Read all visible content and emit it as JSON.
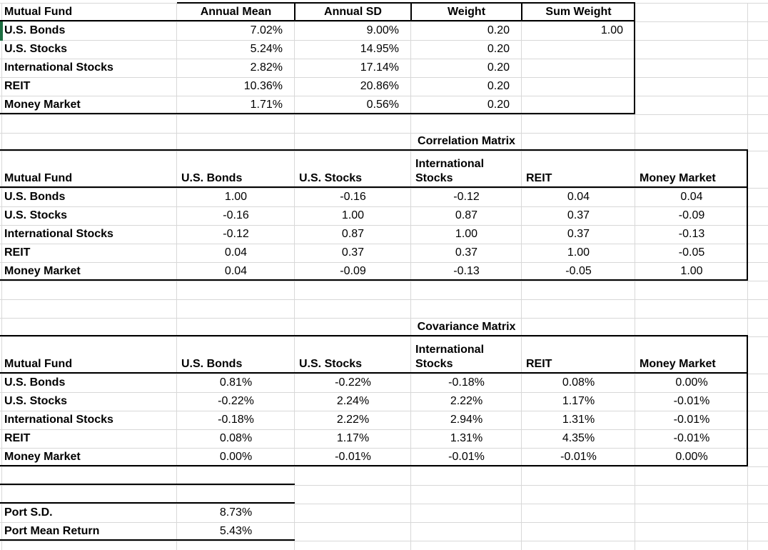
{
  "colors": {
    "background": "#ffffff",
    "gridline": "#d8d8d8",
    "border": "#000000",
    "selection_green": "#1e6f42"
  },
  "top_table": {
    "headers": [
      "Mutual Fund",
      "Annual Mean",
      "Annual SD",
      "Weight",
      "Sum Weight"
    ],
    "rows": [
      {
        "fund": "U.S. Bonds",
        "annual_mean": "7.02%",
        "annual_sd": "9.00%",
        "weight": "0.20",
        "sum_weight": "1.00"
      },
      {
        "fund": "U.S. Stocks",
        "annual_mean": "5.24%",
        "annual_sd": "14.95%",
        "weight": "0.20"
      },
      {
        "fund": "International Stocks",
        "annual_mean": "2.82%",
        "annual_sd": "17.14%",
        "weight": "0.20"
      },
      {
        "fund": "REIT",
        "annual_mean": "10.36%",
        "annual_sd": "20.86%",
        "weight": "0.20"
      },
      {
        "fund": "Money Market",
        "annual_mean": "1.71%",
        "annual_sd": "0.56%",
        "weight": "0.20"
      }
    ]
  },
  "correlation": {
    "title": "Correlation Matrix",
    "headers": [
      "Mutual Fund",
      "U.S. Bonds",
      "U.S. Stocks",
      "International Stocks",
      "REIT",
      "Money Market"
    ],
    "rows": [
      {
        "fund": "U.S. Bonds",
        "values": [
          "1.00",
          "-0.16",
          "-0.12",
          "0.04",
          "0.04"
        ]
      },
      {
        "fund": "U.S. Stocks",
        "values": [
          "-0.16",
          "1.00",
          "0.87",
          "0.37",
          "-0.09"
        ]
      },
      {
        "fund": "International Stocks",
        "values": [
          "-0.12",
          "0.87",
          "1.00",
          "0.37",
          "-0.13"
        ]
      },
      {
        "fund": "REIT",
        "values": [
          "0.04",
          "0.37",
          "0.37",
          "1.00",
          "-0.05"
        ]
      },
      {
        "fund": "Money Market",
        "values": [
          "0.04",
          "-0.09",
          "-0.13",
          "-0.05",
          "1.00"
        ]
      }
    ]
  },
  "covariance": {
    "title": "Covariance Matrix",
    "headers": [
      "Mutual Fund",
      "U.S. Bonds",
      "U.S. Stocks",
      "International Stocks",
      "REIT",
      "Money Market"
    ],
    "rows": [
      {
        "fund": "U.S. Bonds",
        "values": [
          "0.81%",
          "-0.22%",
          "-0.18%",
          "0.08%",
          "0.00%"
        ]
      },
      {
        "fund": "U.S. Stocks",
        "values": [
          "-0.22%",
          "2.24%",
          "2.22%",
          "1.17%",
          "-0.01%"
        ]
      },
      {
        "fund": "International Stocks",
        "values": [
          "-0.18%",
          "2.22%",
          "2.94%",
          "1.31%",
          "-0.01%"
        ]
      },
      {
        "fund": "REIT",
        "values": [
          "0.08%",
          "1.17%",
          "1.31%",
          "4.35%",
          "-0.01%"
        ]
      },
      {
        "fund": "Money Market",
        "values": [
          "0.00%",
          "-0.01%",
          "-0.01%",
          "-0.01%",
          "0.00%"
        ]
      }
    ]
  },
  "portfolio": {
    "rows": [
      {
        "label": "Port S.D.",
        "value": "8.73%"
      },
      {
        "label": "Port Mean Return",
        "value": "5.43%"
      }
    ]
  }
}
